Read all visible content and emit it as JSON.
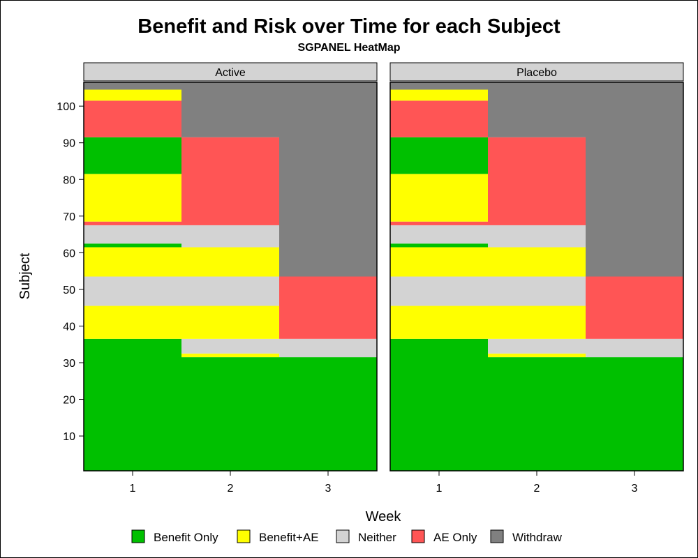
{
  "chart_data": {
    "type": "heatmap",
    "title": "Benefit and Risk over Time for each Subject",
    "subtitle": "SGPANEL HeatMap",
    "xlabel": "Week",
    "ylabel": "Subject",
    "x_ticks": [
      "1",
      "2",
      "3"
    ],
    "y_ticks": [
      "10",
      "20",
      "30",
      "40",
      "50",
      "60",
      "70",
      "80",
      "90",
      "100"
    ],
    "ylim": [
      0.5,
      106.5
    ],
    "legend_position": "bottom",
    "categories": [
      {
        "name": "Benefit Only",
        "color": "#00c000"
      },
      {
        "name": "Benefit+AE",
        "color": "#ffff00"
      },
      {
        "name": "Neither",
        "color": "#d3d3d3"
      },
      {
        "name": "AE Only",
        "color": "#ff5555"
      },
      {
        "name": "Withdraw",
        "color": "#808080"
      }
    ],
    "panels": [
      {
        "name": "Active",
        "cells": [
          {
            "week": 1,
            "from": 0.5,
            "to": 36.5,
            "status": "Benefit Only"
          },
          {
            "week": 1,
            "from": 36.5,
            "to": 45.5,
            "status": "Benefit+AE"
          },
          {
            "week": 1,
            "from": 45.5,
            "to": 53.5,
            "status": "Neither"
          },
          {
            "week": 1,
            "from": 53.5,
            "to": 61.5,
            "status": "Benefit+AE"
          },
          {
            "week": 1,
            "from": 61.5,
            "to": 62.5,
            "status": "Benefit Only"
          },
          {
            "week": 1,
            "from": 62.5,
            "to": 67.5,
            "status": "Neither"
          },
          {
            "week": 1,
            "from": 67.5,
            "to": 68.5,
            "status": "AE Only"
          },
          {
            "week": 1,
            "from": 68.5,
            "to": 81.5,
            "status": "Benefit+AE"
          },
          {
            "week": 1,
            "from": 81.5,
            "to": 91.5,
            "status": "Benefit Only"
          },
          {
            "week": 1,
            "from": 91.5,
            "to": 101.5,
            "status": "AE Only"
          },
          {
            "week": 1,
            "from": 101.5,
            "to": 104.5,
            "status": "Benefit+AE"
          },
          {
            "week": 1,
            "from": 104.5,
            "to": 106.5,
            "status": "Withdraw"
          },
          {
            "week": 2,
            "from": 0.5,
            "to": 31.5,
            "status": "Benefit Only"
          },
          {
            "week": 2,
            "from": 31.5,
            "to": 32.5,
            "status": "Benefit+AE"
          },
          {
            "week": 2,
            "from": 32.5,
            "to": 36.5,
            "status": "Neither"
          },
          {
            "week": 2,
            "from": 36.5,
            "to": 61.5,
            "status": "Benefit+AE"
          },
          {
            "week": 2,
            "from": 53.5,
            "to": 45.5,
            "status": "Neither"
          },
          {
            "week": 2,
            "from": 61.5,
            "to": 67.5,
            "status": "Neither"
          },
          {
            "week": 2,
            "from": 67.5,
            "to": 91.5,
            "status": "AE Only"
          },
          {
            "week": 2,
            "from": 91.5,
            "to": 106.5,
            "status": "Withdraw"
          },
          {
            "week": 3,
            "from": 0.5,
            "to": 31.5,
            "status": "Benefit Only"
          },
          {
            "week": 3,
            "from": 31.5,
            "to": 36.5,
            "status": "Neither"
          },
          {
            "week": 3,
            "from": 36.5,
            "to": 53.5,
            "status": "AE Only"
          },
          {
            "week": 3,
            "from": 53.5,
            "to": 106.5,
            "status": "Withdraw"
          }
        ]
      },
      {
        "name": "Placebo",
        "cells": [
          {
            "week": 1,
            "from": 0.5,
            "to": 36.5,
            "status": "Benefit Only"
          },
          {
            "week": 1,
            "from": 36.5,
            "to": 45.5,
            "status": "Benefit+AE"
          },
          {
            "week": 1,
            "from": 45.5,
            "to": 53.5,
            "status": "Neither"
          },
          {
            "week": 1,
            "from": 53.5,
            "to": 61.5,
            "status": "Benefit+AE"
          },
          {
            "week": 1,
            "from": 61.5,
            "to": 62.5,
            "status": "Benefit Only"
          },
          {
            "week": 1,
            "from": 62.5,
            "to": 67.5,
            "status": "Neither"
          },
          {
            "week": 1,
            "from": 67.5,
            "to": 68.5,
            "status": "AE Only"
          },
          {
            "week": 1,
            "from": 68.5,
            "to": 81.5,
            "status": "Benefit+AE"
          },
          {
            "week": 1,
            "from": 81.5,
            "to": 91.5,
            "status": "Benefit Only"
          },
          {
            "week": 1,
            "from": 91.5,
            "to": 101.5,
            "status": "AE Only"
          },
          {
            "week": 1,
            "from": 101.5,
            "to": 104.5,
            "status": "Benefit+AE"
          },
          {
            "week": 1,
            "from": 104.5,
            "to": 106.5,
            "status": "Withdraw"
          },
          {
            "week": 2,
            "from": 0.5,
            "to": 31.5,
            "status": "Benefit Only"
          },
          {
            "week": 2,
            "from": 31.5,
            "to": 32.5,
            "status": "Benefit+AE"
          },
          {
            "week": 2,
            "from": 32.5,
            "to": 36.5,
            "status": "Neither"
          },
          {
            "week": 2,
            "from": 36.5,
            "to": 61.5,
            "status": "Benefit+AE"
          },
          {
            "week": 2,
            "from": 53.5,
            "to": 45.5,
            "status": "Neither"
          },
          {
            "week": 2,
            "from": 61.5,
            "to": 67.5,
            "status": "Neither"
          },
          {
            "week": 2,
            "from": 67.5,
            "to": 91.5,
            "status": "AE Only"
          },
          {
            "week": 2,
            "from": 91.5,
            "to": 106.5,
            "status": "Withdraw"
          },
          {
            "week": 3,
            "from": 0.5,
            "to": 31.5,
            "status": "Benefit Only"
          },
          {
            "week": 3,
            "from": 31.5,
            "to": 36.5,
            "status": "Neither"
          },
          {
            "week": 3,
            "from": 36.5,
            "to": 53.5,
            "status": "AE Only"
          },
          {
            "week": 3,
            "from": 53.5,
            "to": 106.5,
            "status": "Withdraw"
          }
        ]
      }
    ]
  }
}
